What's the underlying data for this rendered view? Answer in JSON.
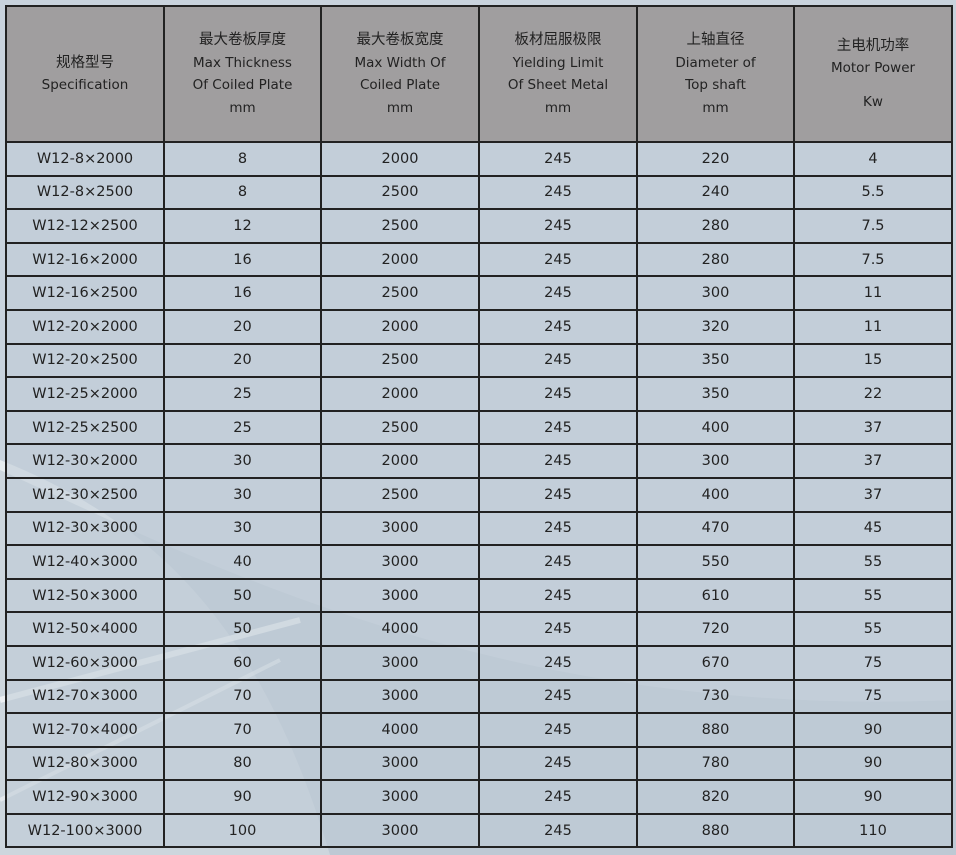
{
  "colors": {
    "header_bg": "#a09e9f",
    "row_bg": "#c6d0da",
    "border": "#222222",
    "page_bg": "#c9d3dd"
  },
  "headers": [
    {
      "cn": "规格型号",
      "en": [
        "Specification"
      ]
    },
    {
      "cn": "最大卷板厚度",
      "en": [
        "Max Thickness",
        "Of Coiled Plate",
        "mm"
      ]
    },
    {
      "cn": "最大卷板宽度",
      "en": [
        "Max Width  Of",
        "Coiled Plate",
        "mm"
      ]
    },
    {
      "cn": "板材屈服极限",
      "en": [
        "Yielding Limit",
        "Of  Sheet Metal",
        "mm"
      ]
    },
    {
      "cn": "上轴直径",
      "en": [
        "Diameter of",
        "Top shaft",
        "mm"
      ]
    },
    {
      "cn": "主电机功率",
      "en": [
        "Motor Power",
        "",
        "Kw"
      ]
    }
  ],
  "rows": [
    [
      "W12-8×2000",
      "8",
      "2000",
      "245",
      "220",
      "4"
    ],
    [
      "W12-8×2500",
      "8",
      "2500",
      "245",
      "240",
      "5.5"
    ],
    [
      "W12-12×2500",
      "12",
      "2500",
      "245",
      "280",
      "7.5"
    ],
    [
      "W12-16×2000",
      "16",
      "2000",
      "245",
      "280",
      "7.5"
    ],
    [
      "W12-16×2500",
      "16",
      "2500",
      "245",
      "300",
      "11"
    ],
    [
      "W12-20×2000",
      "20",
      "2000",
      "245",
      "320",
      "11"
    ],
    [
      "W12-20×2500",
      "20",
      "2500",
      "245",
      "350",
      "15"
    ],
    [
      "W12-25×2000",
      "25",
      "2000",
      "245",
      "350",
      "22"
    ],
    [
      "W12-25×2500",
      "25",
      "2500",
      "245",
      "400",
      "37"
    ],
    [
      "W12-30×2000",
      "30",
      "2000",
      "245",
      "300",
      "37"
    ],
    [
      "W12-30×2500",
      "30",
      "2500",
      "245",
      "400",
      "37"
    ],
    [
      "W12-30×3000",
      "30",
      "3000",
      "245",
      "470",
      "45"
    ],
    [
      "W12-40×3000",
      "40",
      "3000",
      "245",
      "550",
      "55"
    ],
    [
      "W12-50×3000",
      "50",
      "3000",
      "245",
      "610",
      "55"
    ],
    [
      "W12-50×4000",
      "50",
      "4000",
      "245",
      "720",
      "55"
    ],
    [
      "W12-60×3000",
      "60",
      "3000",
      "245",
      "670",
      "75"
    ],
    [
      "W12-70×3000",
      "70",
      "3000",
      "245",
      "730",
      "75"
    ],
    [
      "W12-70×4000",
      "70",
      "4000",
      "245",
      "880",
      "90"
    ],
    [
      "W12-80×3000",
      "80",
      "3000",
      "245",
      "780",
      "90"
    ],
    [
      "W12-90×3000",
      "90",
      "3000",
      "245",
      "820",
      "90"
    ],
    [
      "W12-100×3000",
      "100",
      "3000",
      "245",
      "880",
      "110"
    ]
  ]
}
